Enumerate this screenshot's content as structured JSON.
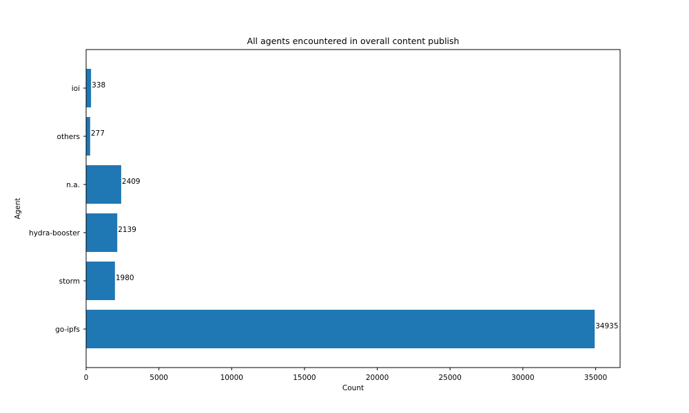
{
  "chart_data": {
    "type": "bar",
    "orientation": "horizontal",
    "title": "All agents encountered in overall content publish",
    "xlabel": "Count",
    "ylabel": "Agent",
    "categories": [
      "go-ipfs",
      "storm",
      "hydra-booster",
      "n.a.",
      "others",
      "ioi"
    ],
    "values": [
      34935,
      1980,
      2139,
      2409,
      277,
      338
    ],
    "data_labels": [
      "34935",
      "1980",
      "2139",
      "2409",
      "277",
      "338"
    ],
    "xlim": [
      0,
      36681
    ],
    "xticks": [
      0,
      5000,
      10000,
      15000,
      20000,
      25000,
      30000,
      35000
    ],
    "xtick_labels": [
      "0",
      "5000",
      "10000",
      "15000",
      "20000",
      "25000",
      "30000",
      "35000"
    ],
    "grid": false,
    "bar_color": "#1f77b4"
  }
}
